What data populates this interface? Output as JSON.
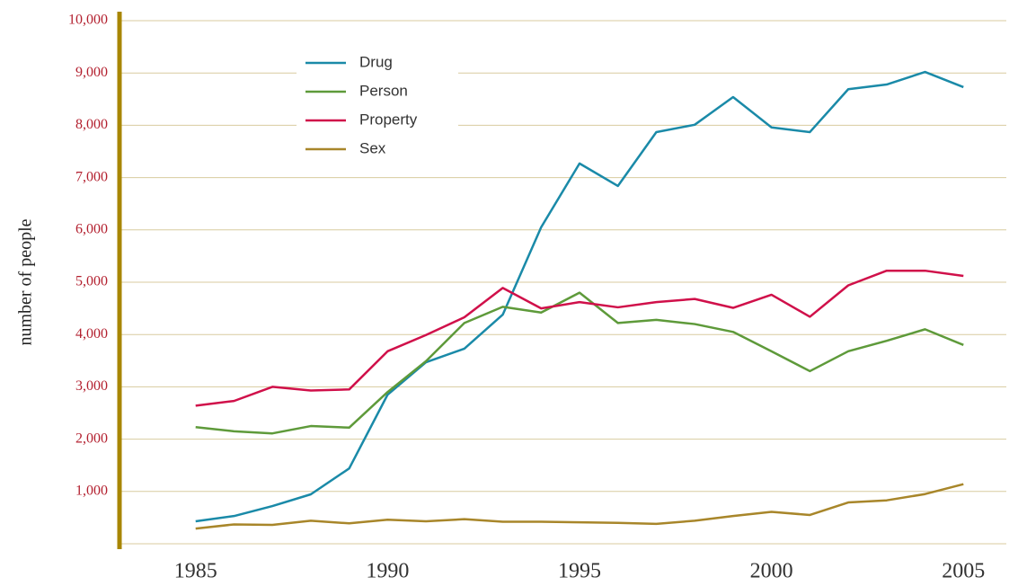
{
  "chart_data": {
    "type": "line",
    "y_label": "number of people",
    "x": [
      1985,
      1986,
      1987,
      1988,
      1989,
      1990,
      1991,
      1992,
      1993,
      1994,
      1995,
      1996,
      1997,
      1998,
      1999,
      2000,
      2001,
      2002,
      2003,
      2004,
      2005
    ],
    "xlim": [
      1984,
      2006
    ],
    "xticks": [
      1985,
      1990,
      1995,
      2000,
      2005
    ],
    "ylim": [
      0,
      10000
    ],
    "yticks": [
      {
        "value": 1000,
        "label": "1,000"
      },
      {
        "value": 2000,
        "label": "2,000"
      },
      {
        "value": 3000,
        "label": "3,000"
      },
      {
        "value": 4000,
        "label": "4,000"
      },
      {
        "value": 5000,
        "label": "5,000"
      },
      {
        "value": 6000,
        "label": "6,000"
      },
      {
        "value": 7000,
        "label": "7,000"
      },
      {
        "value": 8000,
        "label": "8,000"
      },
      {
        "value": 9000,
        "label": "9,000"
      },
      {
        "value": 10000,
        "label": "10,000"
      }
    ],
    "grid": true,
    "legend": "upper left",
    "series": [
      {
        "name": "Drug",
        "color": "#1a8aa8",
        "values": [
          430,
          530,
          720,
          945,
          1440,
          2850,
          3470,
          3730,
          4380,
          6050,
          7270,
          6840,
          7870,
          8010,
          8540,
          7960,
          7870,
          8690,
          8780,
          9020,
          8730
        ]
      },
      {
        "name": "Person",
        "color": "#5e9a3a",
        "values": [
          2230,
          2150,
          2110,
          2250,
          2220,
          2900,
          3490,
          4220,
          4530,
          4420,
          4800,
          4220,
          4280,
          4200,
          4050,
          3680,
          3300,
          3680,
          3880,
          4100,
          3800
        ]
      },
      {
        "name": "Property",
        "color": "#d0104a",
        "values": [
          2640,
          2730,
          3000,
          2930,
          2950,
          3680,
          3990,
          4330,
          4890,
          4500,
          4620,
          4520,
          4620,
          4680,
          4510,
          4760,
          4340,
          4940,
          5220,
          5220,
          5120
        ]
      },
      {
        "name": "Sex",
        "color": "#a8862a",
        "values": [
          290,
          370,
          360,
          440,
          390,
          460,
          430,
          470,
          420,
          420,
          410,
          400,
          380,
          440,
          530,
          610,
          550,
          790,
          830,
          950,
          1140
        ]
      }
    ]
  }
}
